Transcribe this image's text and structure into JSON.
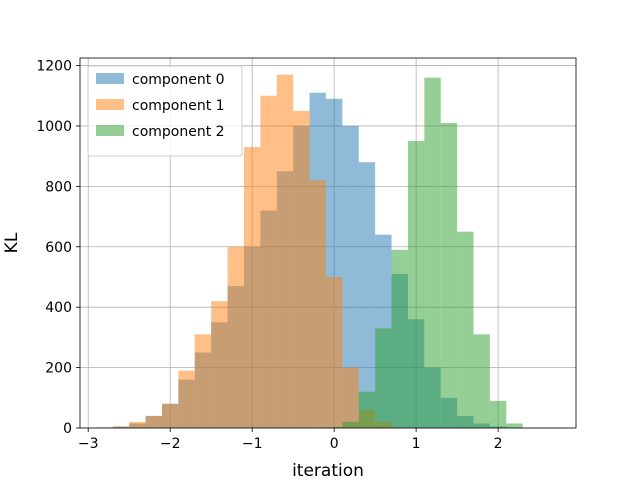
{
  "chart_data": {
    "type": "histogram",
    "xlabel": "iteration",
    "ylabel": "KL",
    "xlim": [
      -3.1,
      2.95
    ],
    "ylim": [
      0,
      1225
    ],
    "xticks": [
      -3,
      -2,
      -1,
      0,
      1,
      2
    ],
    "xtick_labels": [
      "−3",
      "−2",
      "−1",
      "0",
      "1",
      "2"
    ],
    "yticks": [
      0,
      200,
      400,
      600,
      800,
      1000,
      1200
    ],
    "ytick_labels": [
      "0",
      "200",
      "400",
      "600",
      "800",
      "1000",
      "1200"
    ],
    "grid": true,
    "legend_position": "top-left",
    "alpha": 0.5,
    "series": [
      {
        "name": "component 0",
        "color": "#1f77b4",
        "bin_edges": [
          -2.9,
          -2.7,
          -2.5,
          -2.3,
          -2.1,
          -1.9,
          -1.7,
          -1.5,
          -1.3,
          -1.1,
          -0.9,
          -0.7,
          -0.5,
          -0.3,
          -0.1,
          0.1,
          0.3,
          0.5,
          0.7,
          0.9,
          1.1,
          1.3,
          1.5,
          1.7,
          1.9,
          2.1,
          2.3,
          2.5
        ],
        "counts": [
          2,
          5,
          15,
          40,
          80,
          160,
          250,
          350,
          470,
          600,
          720,
          850,
          1000,
          1110,
          1090,
          1000,
          880,
          640,
          510,
          360,
          200,
          100,
          40,
          15,
          5,
          2,
          1
        ]
      },
      {
        "name": "component 1",
        "color": "#ff7f0e",
        "bin_edges": [
          -2.7,
          -2.5,
          -2.3,
          -2.1,
          -1.9,
          -1.7,
          -1.5,
          -1.3,
          -1.1,
          -0.9,
          -0.7,
          -0.5,
          -0.3,
          -0.1,
          0.1,
          0.3,
          0.5,
          0.7
        ],
        "counts": [
          5,
          20,
          40,
          80,
          190,
          310,
          420,
          600,
          930,
          1100,
          1170,
          1050,
          820,
          500,
          200,
          60,
          20
        ]
      },
      {
        "name": "component 2",
        "color": "#2ca02c",
        "bin_edges": [
          -0.1,
          0.1,
          0.3,
          0.5,
          0.7,
          0.9,
          1.1,
          1.3,
          1.5,
          1.7,
          1.9,
          2.1,
          2.3
        ],
        "counts": [
          3,
          20,
          120,
          330,
          590,
          950,
          1160,
          1010,
          650,
          310,
          90,
          15
        ]
      }
    ]
  }
}
